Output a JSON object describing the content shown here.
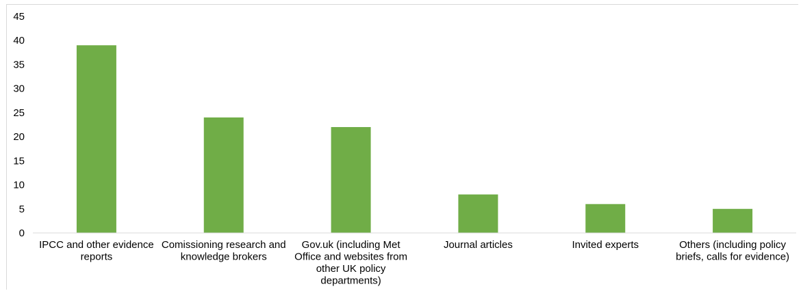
{
  "chart_data": {
    "type": "bar",
    "title": "",
    "xlabel": "",
    "ylabel": "",
    "ylim": [
      0,
      45
    ],
    "yticks": [
      0,
      5,
      10,
      15,
      20,
      25,
      30,
      35,
      40,
      45
    ],
    "grid": false,
    "legend": "none",
    "bar_color": "#70ad47",
    "categories": [
      [
        "IPCC and other evidence",
        "reports"
      ],
      [
        "Comissioning research and",
        "knowledge brokers"
      ],
      [
        "Gov.uk (including Met",
        "Office and websites from",
        "other UK policy",
        "departments)"
      ],
      [
        "Journal articles"
      ],
      [
        "Invited experts"
      ],
      [
        "Others (including policy",
        "briefs, calls for evidence)"
      ]
    ],
    "values": [
      39,
      24,
      22,
      8,
      6,
      5
    ]
  }
}
